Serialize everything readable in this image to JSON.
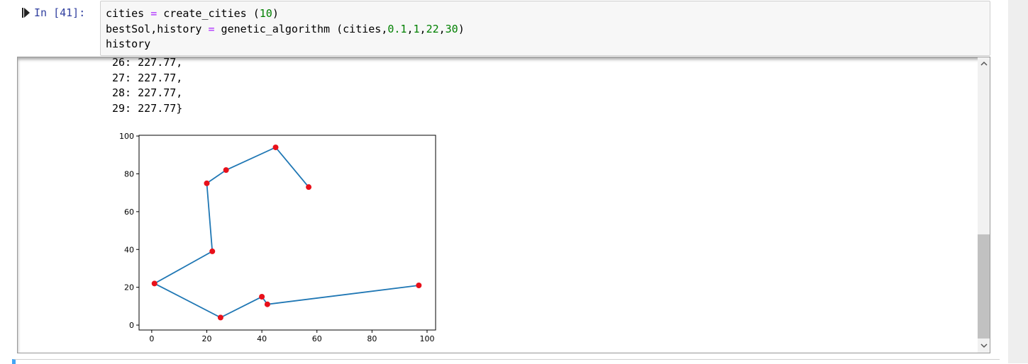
{
  "input_cell": {
    "prompt": "In [41]:",
    "code": [
      [
        {
          "text": "cities ",
          "color": "#000000"
        },
        {
          "text": "=",
          "color": "#aa22ff"
        },
        {
          "text": " create_cities (",
          "color": "#000000"
        },
        {
          "text": "10",
          "color": "#008000"
        },
        {
          "text": ")",
          "color": "#000000"
        }
      ],
      [
        {
          "text": "bestSol,history ",
          "color": "#000000"
        },
        {
          "text": "=",
          "color": "#aa22ff"
        },
        {
          "text": " genetic_algorithm (cities,",
          "color": "#000000"
        },
        {
          "text": "0.1",
          "color": "#008000"
        },
        {
          "text": ",",
          "color": "#000000"
        },
        {
          "text": "1",
          "color": "#008000"
        },
        {
          "text": ",",
          "color": "#000000"
        },
        {
          "text": "22",
          "color": "#008000"
        },
        {
          "text": ",",
          "color": "#000000"
        },
        {
          "text": "30",
          "color": "#008000"
        },
        {
          "text": ")",
          "color": "#000000"
        }
      ],
      [
        {
          "text": "history",
          "color": "#000000"
        }
      ]
    ]
  },
  "output": {
    "lines": [
      "26: 227.77,",
      "27: 227.77,",
      "28: 227.77,",
      "29: 227.77}"
    ]
  },
  "chart_data": {
    "type": "line",
    "x": [
      57,
      45,
      27,
      20,
      22,
      1,
      25,
      40,
      42,
      97
    ],
    "values": [
      73,
      94,
      82,
      75,
      39,
      22,
      4,
      15,
      11,
      21
    ],
    "color": "#1f77b4",
    "marker_color": "#e8101a",
    "xlim": [
      -4.6,
      103.1
    ],
    "ylim": [
      -2.6,
      100.4
    ],
    "xticks": [
      0,
      20,
      40,
      60,
      80,
      100
    ],
    "yticks": [
      0,
      20,
      40,
      60,
      80,
      100
    ]
  }
}
